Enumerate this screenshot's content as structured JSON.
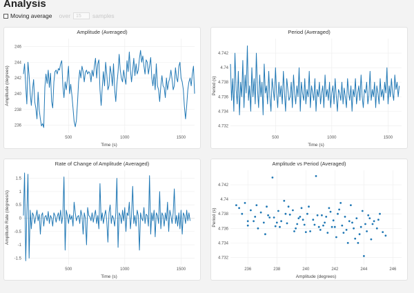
{
  "page": {
    "title": "Analysis",
    "moving_average_label": "Moving average",
    "over_label": "over",
    "samples_value": "15",
    "samples_label": "samples"
  },
  "colors": {
    "series": "#1f77b4",
    "card_bg": "#ffffff",
    "page_bg": "#f3f3f3"
  },
  "chart_data": [
    {
      "type": "line",
      "title": "Amplitude (Averaged)",
      "xlabel": "Time (s)",
      "ylabel": "Amplitude (degrees)",
      "xlim": [
        100,
        1620
      ],
      "ylim": [
        235,
        247
      ],
      "xticks": [
        500,
        1000,
        1500
      ],
      "yticks": [
        236,
        238,
        240,
        242,
        244,
        246
      ],
      "x_start": 100,
      "x_step": 10,
      "y": [
        242.5,
        243.8,
        241.0,
        238.7,
        244.0,
        242.3,
        240.0,
        238.5,
        240.5,
        241.8,
        239.0,
        238.2,
        236.8,
        240.2,
        238.0,
        236.8,
        235.9,
        236.2,
        235.7,
        240.8,
        242.5,
        241.3,
        243.0,
        240.8,
        242.6,
        239.0,
        238.2,
        241.5,
        242.8,
        243.0,
        242.5,
        243.2,
        243.0,
        243.8,
        244.2,
        241.0,
        239.5,
        241.5,
        240.5,
        241.8,
        243.5,
        240.0,
        241.2,
        239.8,
        238.2,
        236.5,
        235.8,
        236.6,
        238.8,
        241.5,
        243.0,
        242.0,
        243.5,
        242.8,
        241.5,
        242.7,
        243.0,
        242.5,
        242.8,
        242.6,
        241.5,
        243.0,
        242.2,
        243.5,
        244.5,
        242.0,
        243.8,
        244.3,
        240.5,
        238.5,
        240.8,
        242.8,
        241.0,
        244.0,
        242.5,
        240.5,
        241.0,
        243.5,
        242.5,
        241.0,
        243.8,
        240.5,
        239.0,
        241.2,
        242.8,
        245.0,
        243.0,
        242.0,
        241.5,
        243.0,
        242.0,
        241.2,
        244.2,
        242.8,
        245.3,
        243.0,
        241.5,
        243.0,
        244.5,
        242.3,
        243.8,
        242.5,
        243.0,
        244.5,
        245.5,
        244.0,
        244.8,
        243.5,
        242.5,
        244.3,
        244.0,
        242.5,
        243.5,
        244.6,
        242.0,
        241.0,
        242.5,
        240.5,
        243.8,
        241.0,
        240.5,
        239.0,
        241.0,
        242.3,
        241.0,
        240.8,
        239.5,
        242.0,
        240.5,
        241.5,
        242.0,
        243.0,
        241.8,
        240.5,
        241.0,
        243.3,
        242.0,
        241.5,
        243.5,
        244.0,
        242.0,
        241.5,
        240.5,
        238.3,
        236.8,
        238.5,
        240.5,
        241.5,
        242.0,
        241.0,
        242.5,
        243.5,
        240.0
      ]
    },
    {
      "type": "line",
      "title": "Period (Averaged)",
      "xlabel": "Time (s)",
      "ylabel": "Period (s)",
      "xlim": [
        100,
        1620
      ],
      "ylim": [
        4.731,
        4.744
      ],
      "xticks": [
        500,
        1000,
        1500
      ],
      "yticks": [
        4.732,
        4.734,
        4.736,
        4.738,
        4.74,
        4.742
      ],
      "x_start": 100,
      "x_step": 10,
      "y": [
        4.7405,
        4.7355,
        4.7385,
        4.734,
        4.742,
        4.737,
        4.735,
        4.7395,
        4.7335,
        4.738,
        4.736,
        4.741,
        4.7345,
        4.739,
        4.7365,
        4.743,
        4.7355,
        4.7375,
        4.734,
        4.74,
        4.736,
        4.7385,
        4.735,
        4.742,
        4.737,
        4.7345,
        4.739,
        4.736,
        4.738,
        4.7335,
        4.7405,
        4.7365,
        4.7375,
        4.735,
        4.7395,
        4.736,
        4.734,
        4.7385,
        4.737,
        4.7355,
        4.74,
        4.7365,
        4.7345,
        4.738,
        4.736,
        4.7375,
        4.735,
        4.7395,
        4.7365,
        4.734,
        4.7385,
        4.737,
        4.7355,
        4.736,
        4.738,
        4.7345,
        4.739,
        4.7365,
        4.735,
        4.7375,
        4.736,
        4.74,
        4.734,
        4.738,
        4.7365,
        4.7355,
        4.7385,
        4.735,
        4.737,
        4.736,
        4.7395,
        4.7345,
        4.7375,
        4.7365,
        4.7355,
        4.7385,
        4.734,
        4.737,
        4.736,
        4.738,
        4.735,
        4.7365,
        4.7375,
        4.7345,
        4.739,
        4.736,
        4.737,
        4.7355,
        4.738,
        4.7345,
        4.7365,
        4.7375,
        4.735,
        4.7385,
        4.736,
        4.734,
        4.737,
        4.7365,
        4.7355,
        4.738,
        4.735,
        4.7372,
        4.736,
        4.7345,
        4.7385,
        4.7365,
        4.7355,
        4.7375,
        4.734,
        4.737,
        4.736,
        4.7385,
        4.735,
        4.7365,
        4.7375,
        4.7355,
        4.739,
        4.736,
        4.7345,
        4.737,
        4.7365,
        4.738,
        4.735,
        4.7362,
        4.7395,
        4.7355,
        4.737,
        4.736,
        4.738,
        4.7345,
        4.7375,
        4.7365,
        4.735,
        4.7385,
        4.736,
        4.737,
        4.7355,
        4.738,
        4.7365,
        4.74,
        4.735,
        4.7375,
        4.736,
        4.7385,
        4.7365,
        4.7355,
        4.739,
        4.737,
        4.738,
        4.736,
        4.7375
      ]
    },
    {
      "type": "line",
      "title": "Rate of Change of Amplitude (Averaged)",
      "xlabel": "Time (s)",
      "ylabel": "Amplitude Rate (degrees/s)",
      "xlim": [
        100,
        1620
      ],
      "ylim": [
        -1.75,
        1.8
      ],
      "xticks": [
        500,
        1000,
        1500
      ],
      "yticks": [
        -1.5,
        -1,
        -0.5,
        0,
        0.5,
        1,
        1.5
      ],
      "x_start": 100,
      "x_step": 10,
      "y": [
        0.1,
        1.7,
        -1.6,
        0.2,
        1.65,
        -1.5,
        0.3,
        -0.4,
        0.2,
        0.1,
        -0.2,
        0.05,
        0.3,
        -0.1,
        0.15,
        -0.6,
        0.1,
        0.2,
        -0.3,
        0.05,
        0.1,
        -0.1,
        0.25,
        -0.2,
        0.1,
        0.0,
        -0.3,
        0.2,
        0.1,
        -0.15,
        0.05,
        0.2,
        -0.1,
        0.3,
        -0.2,
        0.1,
        1.55,
        -1.2,
        0.3,
        0.1,
        -0.2,
        0.15,
        -0.05,
        0.1,
        -0.3,
        0.6,
        0.2,
        -0.1,
        0.05,
        0.1,
        -0.2,
        0.3,
        0.1,
        -0.6,
        0.2,
        0.0,
        -1.0,
        0.4,
        0.1,
        0.05,
        -0.1,
        0.2,
        -0.15,
        0.1,
        0.3,
        -0.2,
        0.1,
        -0.4,
        1.3,
        -0.1,
        0.2,
        -0.2,
        0.1,
        0.3,
        -0.1,
        -0.9,
        0.2,
        0.5,
        -0.2,
        0.1,
        0.0,
        -0.3,
        0.2,
        1.5,
        -1.1,
        0.2,
        0.1,
        -0.2,
        0.3,
        -0.1,
        0.4,
        -0.5,
        0.2,
        0.1,
        0.6,
        -0.4,
        0.1,
        1.2,
        -0.2,
        0.1,
        -0.3,
        0.3,
        0.1,
        -1.2,
        0.2,
        0.0,
        -0.1,
        0.4,
        -0.2,
        0.15,
        0.1,
        -0.3,
        1.6,
        -0.6,
        0.2,
        -0.1,
        0.3,
        -0.7,
        0.2,
        0.1,
        -0.2,
        1.0,
        -0.4,
        0.2,
        0.1,
        -0.3,
        0.2,
        -0.1,
        0.6,
        -0.5,
        0.3,
        0.1,
        -0.2,
        0.2,
        1.1,
        -0.2,
        0.1,
        -0.3,
        0.2,
        -0.4,
        0.3,
        -0.6,
        0.2,
        0.1,
        -0.2,
        0.3,
        -0.1,
        0.2,
        -0.1
      ]
    },
    {
      "type": "scatter",
      "title": "Amplitude vs Period (Averaged)",
      "xlabel": "Amplitude (degrees)",
      "ylabel": "Period (s)",
      "xlim": [
        234.8,
        246.6
      ],
      "ylim": [
        4.731,
        4.744
      ],
      "xticks": [
        236,
        238,
        240,
        242,
        244,
        246
      ],
      "yticks": [
        4.732,
        4.734,
        4.736,
        4.738,
        4.74,
        4.742
      ],
      "points": [
        [
          235.2,
          4.7392
        ],
        [
          235.4,
          4.7388
        ],
        [
          235.6,
          4.738
        ],
        [
          235.8,
          4.7395
        ],
        [
          236.0,
          4.737
        ],
        [
          236.2,
          4.7385
        ],
        [
          236.5,
          4.7376
        ],
        [
          236.7,
          4.736
        ],
        [
          236.9,
          4.7382
        ],
        [
          237.1,
          4.7368
        ],
        [
          237.3,
          4.739
        ],
        [
          237.5,
          4.7375
        ],
        [
          237.7,
          4.743
        ],
        [
          237.9,
          4.7363
        ],
        [
          238.1,
          4.7384
        ],
        [
          238.3,
          4.737
        ],
        [
          238.5,
          4.7398
        ],
        [
          238.7,
          4.7367
        ],
        [
          238.9,
          4.7379
        ],
        [
          239.1,
          4.7385
        ],
        [
          239.3,
          4.736
        ],
        [
          239.5,
          4.7374
        ],
        [
          239.7,
          4.7388
        ],
        [
          239.9,
          4.7365
        ],
        [
          240.1,
          4.738
        ],
        [
          240.3,
          4.7356
        ],
        [
          240.5,
          4.7372
        ],
        [
          240.7,
          4.7432
        ],
        [
          240.9,
          4.7362
        ],
        [
          241.1,
          4.7378
        ],
        [
          241.3,
          4.7368
        ],
        [
          241.5,
          4.7354
        ],
        [
          241.7,
          4.7383
        ],
        [
          241.9,
          4.7371
        ],
        [
          242.1,
          4.7348
        ],
        [
          242.3,
          4.7386
        ],
        [
          242.5,
          4.7364
        ],
        [
          242.7,
          4.7376
        ],
        [
          242.9,
          4.734
        ],
        [
          243.1,
          4.7392
        ],
        [
          243.3,
          4.736
        ],
        [
          243.5,
          4.7374
        ],
        [
          243.7,
          4.7352
        ],
        [
          243.9,
          4.7384
        ],
        [
          244.1,
          4.7366
        ],
        [
          244.3,
          4.7378
        ],
        [
          244.5,
          4.7345
        ],
        [
          244.7,
          4.737
        ],
        [
          244.9,
          4.736
        ],
        [
          245.1,
          4.738
        ],
        [
          245.3,
          4.7355
        ],
        [
          245.5,
          4.735
        ],
        [
          236.0,
          4.7364
        ],
        [
          236.6,
          4.7392
        ],
        [
          237.2,
          4.7352
        ],
        [
          237.8,
          4.7375
        ],
        [
          238.2,
          4.7362
        ],
        [
          238.8,
          4.739
        ],
        [
          239.2,
          4.7356
        ],
        [
          239.8,
          4.7372
        ],
        [
          240.2,
          4.739
        ],
        [
          240.6,
          4.7365
        ],
        [
          241.0,
          4.7358
        ],
        [
          241.4,
          4.7376
        ],
        [
          241.8,
          4.7362
        ],
        [
          242.2,
          4.738
        ],
        [
          242.6,
          4.7354
        ],
        [
          243.0,
          4.737
        ],
        [
          243.4,
          4.7346
        ],
        [
          243.8,
          4.7362
        ],
        [
          244.2,
          4.7356
        ],
        [
          244.6,
          4.7366
        ],
        [
          245.0,
          4.7372
        ],
        [
          242.4,
          4.7395
        ],
        [
          243.6,
          4.734
        ],
        [
          244.0,
          4.7322
        ],
        [
          242.8,
          4.7358
        ],
        [
          241.6,
          4.7388
        ],
        [
          240.8,
          4.7378
        ],
        [
          240.0,
          4.7355
        ],
        [
          239.4,
          4.7366
        ],
        [
          238.6,
          4.738
        ],
        [
          237.4,
          4.7378
        ],
        [
          236.4,
          4.737
        ],
        [
          242.0,
          4.7362
        ],
        [
          243.2,
          4.7368
        ],
        [
          244.4,
          4.7374
        ],
        [
          241.2,
          4.7364
        ],
        [
          239.6,
          4.7376
        ],
        [
          238.0,
          4.7368
        ]
      ]
    }
  ]
}
